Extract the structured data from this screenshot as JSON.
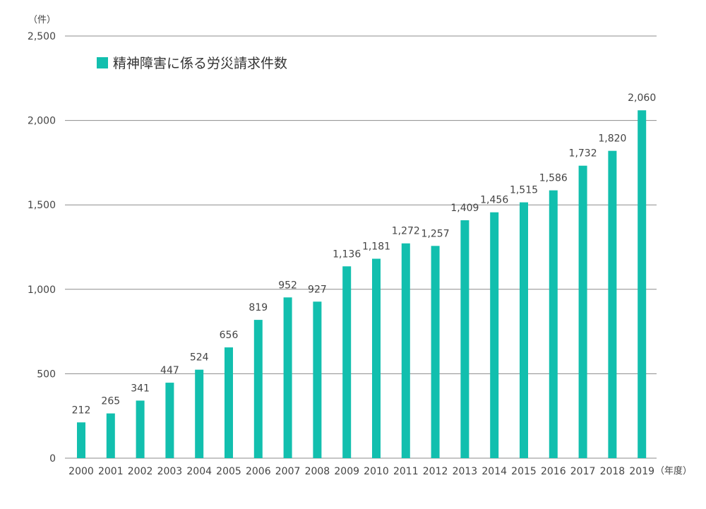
{
  "chart_data": {
    "type": "bar",
    "categories": [
      "2000",
      "2001",
      "2002",
      "2003",
      "2004",
      "2005",
      "2006",
      "2007",
      "2008",
      "2009",
      "2010",
      "2011",
      "2012",
      "2013",
      "2014",
      "2015",
      "2016",
      "2017",
      "2018",
      "2019"
    ],
    "series": [
      {
        "name": "精神障害に係る労災請求件数",
        "values": [
          212,
          265,
          341,
          447,
          524,
          656,
          819,
          952,
          927,
          1136,
          1181,
          1272,
          1257,
          1409,
          1456,
          1515,
          1586,
          1732,
          1820,
          2060
        ],
        "value_labels": [
          "212",
          "265",
          "341",
          "447",
          "524",
          "656",
          "819",
          "952",
          "927",
          "1,136",
          "1,181",
          "1,272",
          "1,257",
          "1,409",
          "1,456",
          "1,515",
          "1,586",
          "1,732",
          "1,820",
          "2,060"
        ],
        "color": "#12bfae"
      }
    ],
    "y_unit_label": "（件）",
    "x_unit_label": "（年度）",
    "ylim": [
      0,
      2500
    ],
    "yticks": [
      0,
      500,
      1000,
      1500,
      2000,
      2500
    ],
    "ytick_labels": [
      "0",
      "500",
      "1,000",
      "1,500",
      "2,000",
      "2,500"
    ],
    "grid": true,
    "grid_color": "#8c8c8c",
    "legend_position": "top-left"
  }
}
